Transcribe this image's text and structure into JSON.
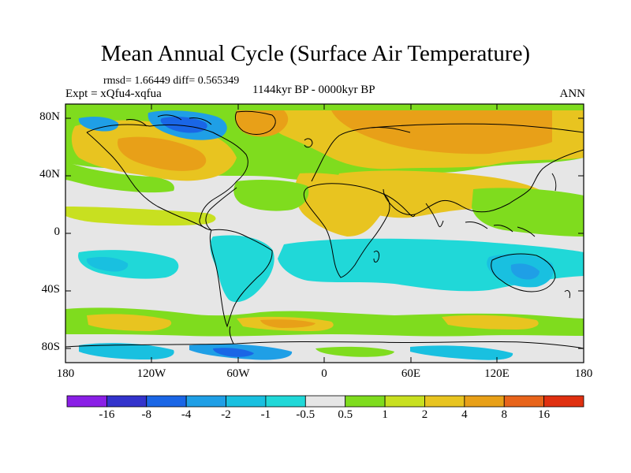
{
  "title": "Mean Annual Cycle (Surface Air Temperature)",
  "stats": "rmsd= 1.66449 diff= 0.565349",
  "experiment": "Expt = xQfu4-xqfua",
  "period": "1144kyr BP - 0000kyr BP",
  "season": "ANN",
  "axes": {
    "lat_labels": [
      "80N",
      "40N",
      "0",
      "40S",
      "80S"
    ],
    "lon_labels": [
      "180",
      "120W",
      "60W",
      "0",
      "60E",
      "120E",
      "180"
    ]
  },
  "colorbar": {
    "labels": [
      "-16",
      "-8",
      "-4",
      "-2",
      "-1",
      "-0.5",
      "0.5",
      "1",
      "2",
      "4",
      "8",
      "16"
    ],
    "colors": [
      "#8a1fe6",
      "#3333cc",
      "#1a66e6",
      "#1f9fe6",
      "#19c0e0",
      "#20d8d8",
      "#e6e6e6",
      "#7fdc1e",
      "#c8e020",
      "#e8c420",
      "#e8a018",
      "#e8641a",
      "#e03010"
    ]
  },
  "colors": {
    "background": "#e6e6e6",
    "coastline": "#000000",
    "frame": "#000000"
  }
}
